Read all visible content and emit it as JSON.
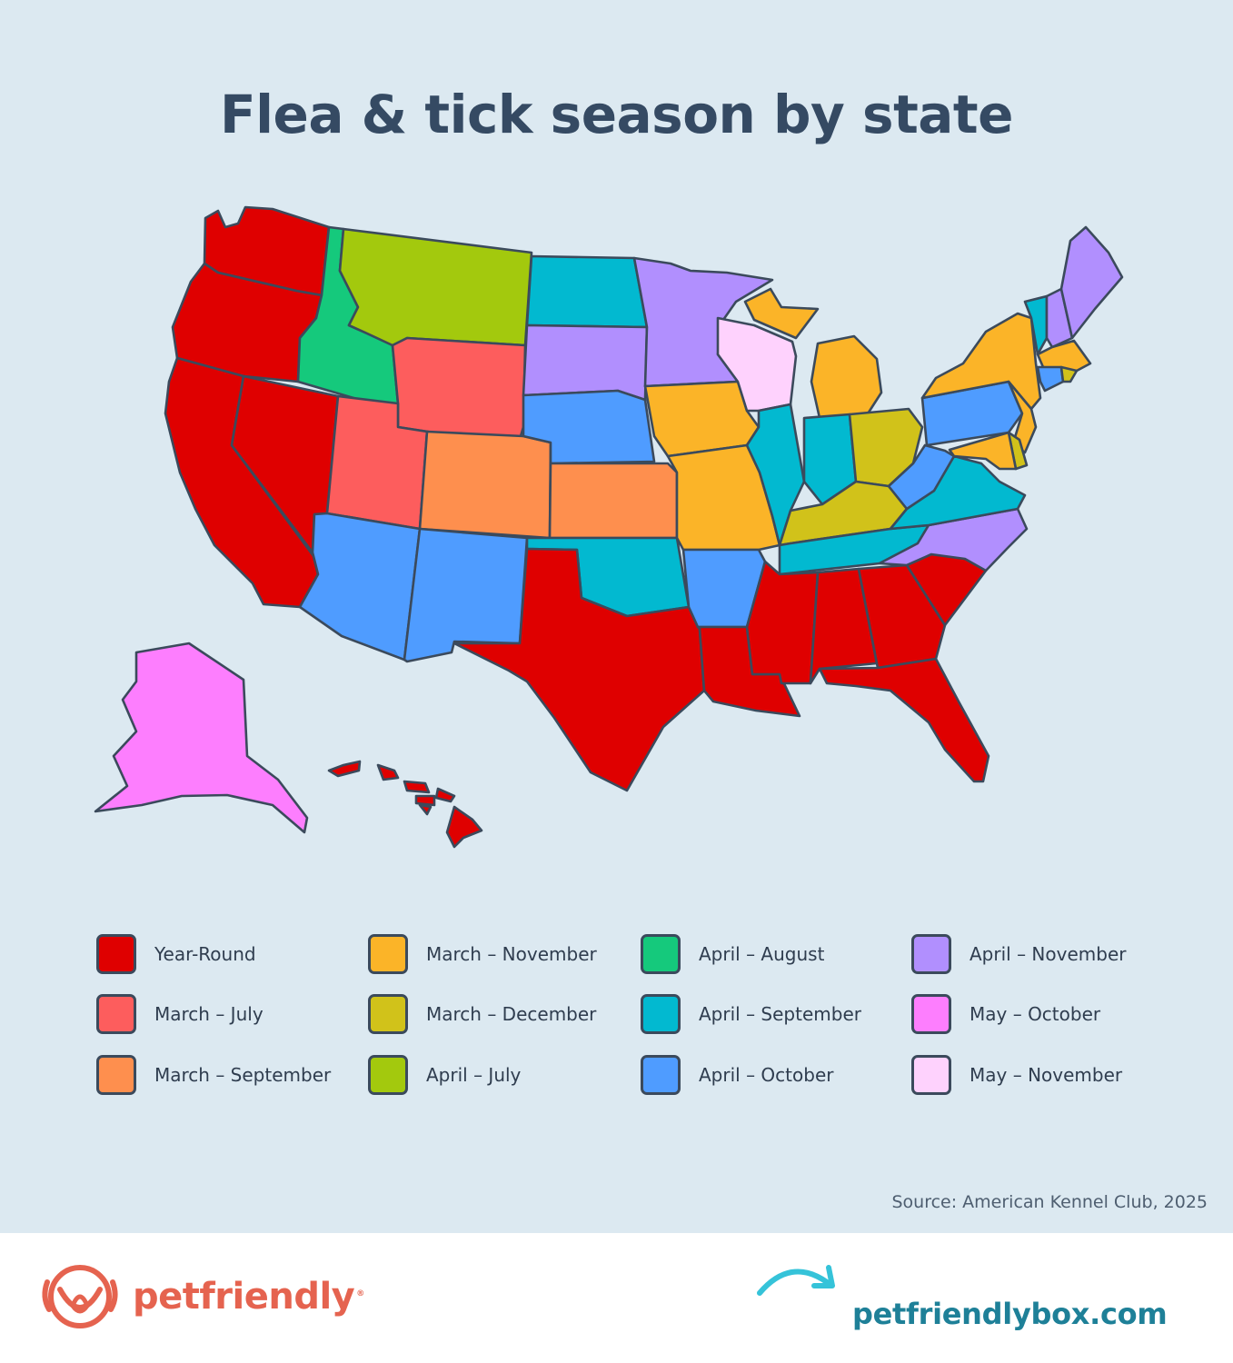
{
  "title": "Flea & tick season by state",
  "source": "Source: American Kennel Club, 2025",
  "colors": {
    "background": "#dce9f1",
    "year_round": "#df0000",
    "march_july": "#fd5d5d",
    "march_september": "#fe8f4e",
    "march_november": "#fbb428",
    "march_december": "#d1c21a",
    "april_july": "#a3c90d",
    "april_august": "#15c97c",
    "april_september": "#02b9d0",
    "april_october": "#4f9cff",
    "april_november": "#b18ffe",
    "may_october": "#fd7efe",
    "may_november": "#fed2fd",
    "brand_orange": "#e5634f",
    "brand_teal": "#1e8098"
  },
  "legend": [
    {
      "label": "Year-Round",
      "color": "#df0000"
    },
    {
      "label": "March – July",
      "color": "#fd5d5d"
    },
    {
      "label": "March – September",
      "color": "#fe8f4e"
    },
    {
      "label": "March – November",
      "color": "#fbb428"
    },
    {
      "label": "March – December",
      "color": "#d1c21a"
    },
    {
      "label": "April – July",
      "color": "#a3c90d"
    },
    {
      "label": "April – August",
      "color": "#15c97c"
    },
    {
      "label": "April – September",
      "color": "#02b9d0"
    },
    {
      "label": "April – October",
      "color": "#4f9cff"
    },
    {
      "label": "April – November",
      "color": "#b18ffe"
    },
    {
      "label": "May – October",
      "color": "#fd7efe"
    },
    {
      "label": "May – November",
      "color": "#fed2fd"
    }
  ],
  "states": [
    {
      "name": "Washington",
      "season": "Year-Round"
    },
    {
      "name": "Oregon",
      "season": "Year-Round"
    },
    {
      "name": "California",
      "season": "Year-Round"
    },
    {
      "name": "Nevada",
      "season": "Year-Round"
    },
    {
      "name": "Idaho",
      "season": "April – August"
    },
    {
      "name": "Montana",
      "season": "April – July"
    },
    {
      "name": "Wyoming",
      "season": "March – July"
    },
    {
      "name": "Utah",
      "season": "March – July"
    },
    {
      "name": "Arizona",
      "season": "April – October"
    },
    {
      "name": "Colorado",
      "season": "March – September"
    },
    {
      "name": "New Mexico",
      "season": "April – October"
    },
    {
      "name": "North Dakota",
      "season": "April – September"
    },
    {
      "name": "South Dakota",
      "season": "April – November"
    },
    {
      "name": "Nebraska",
      "season": "April – October"
    },
    {
      "name": "Kansas",
      "season": "March – September"
    },
    {
      "name": "Oklahoma",
      "season": "April – September"
    },
    {
      "name": "Texas",
      "season": "Year-Round"
    },
    {
      "name": "Minnesota",
      "season": "April – November"
    },
    {
      "name": "Iowa",
      "season": "March – November"
    },
    {
      "name": "Missouri",
      "season": "March – November"
    },
    {
      "name": "Arkansas",
      "season": "April – October"
    },
    {
      "name": "Louisiana",
      "season": "Year-Round"
    },
    {
      "name": "Wisconsin",
      "season": "May – November"
    },
    {
      "name": "Illinois",
      "season": "April – September"
    },
    {
      "name": "Michigan",
      "season": "March – November"
    },
    {
      "name": "Indiana",
      "season": "April – September"
    },
    {
      "name": "Ohio",
      "season": "March – December"
    },
    {
      "name": "Kentucky",
      "season": "March – December"
    },
    {
      "name": "Tennessee",
      "season": "April – September"
    },
    {
      "name": "Mississippi",
      "season": "Year-Round"
    },
    {
      "name": "Alabama",
      "season": "Year-Round"
    },
    {
      "name": "Georgia",
      "season": "Year-Round"
    },
    {
      "name": "Florida",
      "season": "Year-Round"
    },
    {
      "name": "South Carolina",
      "season": "Year-Round"
    },
    {
      "name": "North Carolina",
      "season": "April – November"
    },
    {
      "name": "Virginia",
      "season": "April – September"
    },
    {
      "name": "West Virginia",
      "season": "April – October"
    },
    {
      "name": "Pennsylvania",
      "season": "April – October"
    },
    {
      "name": "New York",
      "season": "March – November"
    },
    {
      "name": "New Jersey",
      "season": "March – November"
    },
    {
      "name": "Delaware",
      "season": "March – December"
    },
    {
      "name": "Maryland",
      "season": "March – November"
    },
    {
      "name": "Vermont",
      "season": "April – September"
    },
    {
      "name": "New Hampshire",
      "season": "April – November"
    },
    {
      "name": "Maine",
      "season": "April – November"
    },
    {
      "name": "Massachusetts",
      "season": "March – November"
    },
    {
      "name": "Connecticut",
      "season": "April – October"
    },
    {
      "name": "Rhode Island",
      "season": "March – December"
    },
    {
      "name": "Alaska",
      "season": "May – October"
    },
    {
      "name": "Hawaii",
      "season": "Year-Round"
    }
  ],
  "footer": {
    "brand_name": "petfriendly",
    "brand_reg": "®",
    "website": "petfriendlybox.com"
  }
}
